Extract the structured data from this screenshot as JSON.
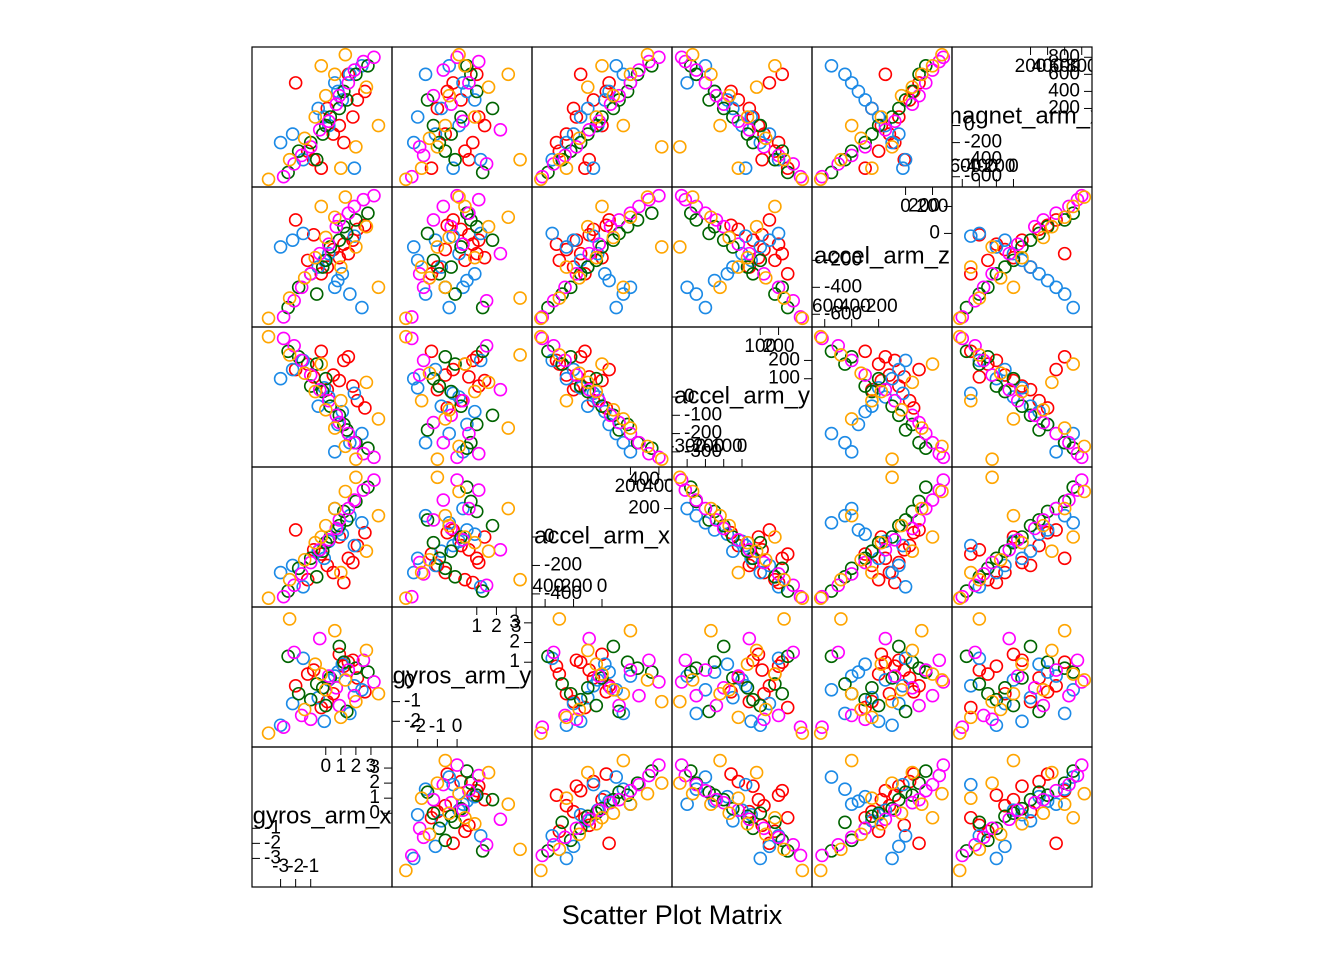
{
  "chart_data": {
    "type": "splom",
    "title": "Scatter Plot Matrix",
    "variables": [
      {
        "name": "gyros_arm_x",
        "lim": [
          -4.5,
          4
        ],
        "ticks": [
          -3,
          -2,
          -1,
          0,
          1,
          2,
          3
        ]
      },
      {
        "name": "gyros_arm_y",
        "lim": [
          -3,
          3.5
        ],
        "ticks": [
          -2,
          -1,
          0,
          1,
          2,
          3
        ]
      },
      {
        "name": "accel_arm_x",
        "lim": [
          -450,
          450
        ],
        "ticks": [
          -400,
          -200,
          0,
          200,
          400
        ]
      },
      {
        "name": "accel_arm_y",
        "lim": [
          -350,
          350
        ],
        "ticks": [
          -300,
          -200,
          -100,
          0,
          100,
          200
        ]
      },
      {
        "name": "accel_arm_z",
        "lim": [
          -650,
          300
        ],
        "ticks": [
          -600,
          -400,
          -200,
          0,
          200
        ]
      },
      {
        "name": "magnet_arm_x",
        "lim": [
          -650,
          850
        ],
        "ticks": [
          -600,
          -400,
          -200,
          0,
          200,
          400,
          600,
          800
        ]
      }
    ],
    "series": [
      {
        "color": "#ff0000",
        "values": [
          [
            -1.2,
            0.5,
            1.8,
            -0.3,
            2.1,
            0.9,
            -2.0,
            1.2,
            0.1,
            -0.8,
            2.6,
            1.5
          ],
          [
            0.4,
            -0.6,
            1.1,
            -1.3,
            0.2,
            1.4,
            -0.2,
            0.8,
            -1.0,
            0.6,
            -0.5,
            1.0
          ],
          [
            -300,
            -250,
            -180,
            -120,
            -60,
            0,
            50,
            -320,
            -200,
            -90,
            30,
            -150
          ],
          [
            180,
            120,
            60,
            250,
            -20,
            90,
            150,
            200,
            40,
            110,
            -60,
            220
          ],
          [
            -200,
            -120,
            -50,
            -300,
            30,
            -180,
            100,
            -80,
            -250,
            -10,
            60,
            -150
          ],
          [
            -300,
            -100,
            100,
            -500,
            300,
            0,
            500,
            -200,
            200,
            -400,
            400,
            600
          ]
        ]
      },
      {
        "color": "#1c8ae6",
        "values": [
          [
            -3.0,
            -0.5,
            0.8,
            1.6,
            -1.5,
            0.2,
            2.4,
            -2.2,
            1.1,
            -0.1,
            0.6,
            1.9
          ],
          [
            -2.2,
            -0.8,
            0.5,
            -1.6,
            1.2,
            0.1,
            -0.4,
            -1.1,
            0.9,
            -2.0,
            0.3,
            -0.2
          ],
          [
            -250,
            -100,
            50,
            150,
            -350,
            -30,
            100,
            -200,
            20,
            -150,
            200,
            -60
          ],
          [
            100,
            -50,
            -150,
            -250,
            200,
            0,
            -200,
            150,
            -80,
            50,
            -300,
            20
          ],
          [
            -100,
            -250,
            -350,
            -450,
            0,
            -150,
            -550,
            -50,
            -300,
            -200,
            -400,
            -20
          ],
          [
            -200,
            200,
            400,
            600,
            -400,
            0,
            700,
            -100,
            300,
            100,
            500,
            -500
          ]
        ]
      },
      {
        "color": "#006400",
        "values": [
          [
            -2.5,
            -1.0,
            0.3,
            1.4,
            2.0,
            -0.6,
            0.9,
            -1.8,
            2.8,
            0.0,
            1.2,
            -0.2
          ],
          [
            1.3,
            -0.9,
            0.2,
            -1.5,
            0.7,
            -0.1,
            1.8,
            -0.6,
            0.5,
            -1.2,
            1.0,
            -0.3
          ],
          [
            -380,
            -150,
            0,
            120,
            250,
            -280,
            80,
            -220,
            350,
            -40,
            180,
            -100
          ],
          [
            250,
            60,
            -50,
            -180,
            -250,
            180,
            -100,
            220,
            -280,
            100,
            -150,
            30
          ],
          [
            -550,
            -300,
            -100,
            0,
            100,
            -450,
            -50,
            -400,
            150,
            -200,
            50,
            -250
          ],
          [
            -550,
            -200,
            100,
            300,
            600,
            -400,
            200,
            -300,
            700,
            0,
            400,
            -100
          ]
        ]
      },
      {
        "color": "#ff00ff",
        "values": [
          [
            -2.8,
            -1.6,
            -0.4,
            0.7,
            1.5,
            2.5,
            -1.0,
            0.2,
            1.9,
            -2.1,
            0.9,
            3.2
          ],
          [
            -2.3,
            -1.7,
            2.2,
            -0.3,
            0.6,
            1.1,
            -1.9,
            0.3,
            -0.7,
            1.5,
            -1.2,
            0.0
          ],
          [
            -420,
            -260,
            -90,
            60,
            200,
            330,
            -180,
            -20,
            260,
            -340,
            120,
            400
          ],
          [
            320,
            200,
            40,
            -100,
            -200,
            -310,
            120,
            -20,
            -250,
            280,
            -140,
            -330
          ],
          [
            -620,
            -400,
            -150,
            50,
            150,
            250,
            -300,
            -80,
            200,
            -500,
            100,
            280
          ],
          [
            -600,
            -350,
            -50,
            250,
            500,
            750,
            -250,
            50,
            650,
            -450,
            350,
            800
          ]
        ]
      },
      {
        "color": "#ffa500",
        "values": [
          [
            -3.8,
            -2.4,
            -1.4,
            -0.7,
            0.0,
            0.6,
            1.3,
            2.0,
            2.7,
            3.5,
            -0.3,
            1.0
          ],
          [
            -2.6,
            3.2,
            -1.4,
            0.9,
            -0.4,
            2.6,
            0.1,
            -1.0,
            1.6,
            -0.6,
            0.4,
            -1.8
          ],
          [
            -430,
            -300,
            -160,
            -40,
            80,
            200,
            320,
            420,
            -100,
            150,
            0,
            -250
          ],
          [
            330,
            230,
            130,
            30,
            -70,
            -170,
            -270,
            -340,
            80,
            -120,
            180,
            -20
          ],
          [
            -630,
            -480,
            -330,
            -180,
            -30,
            120,
            270,
            -100,
            50,
            -400,
            200,
            -250
          ],
          [
            -630,
            -400,
            -150,
            100,
            350,
            600,
            830,
            -250,
            450,
            0,
            700,
            -500
          ]
        ]
      }
    ]
  }
}
